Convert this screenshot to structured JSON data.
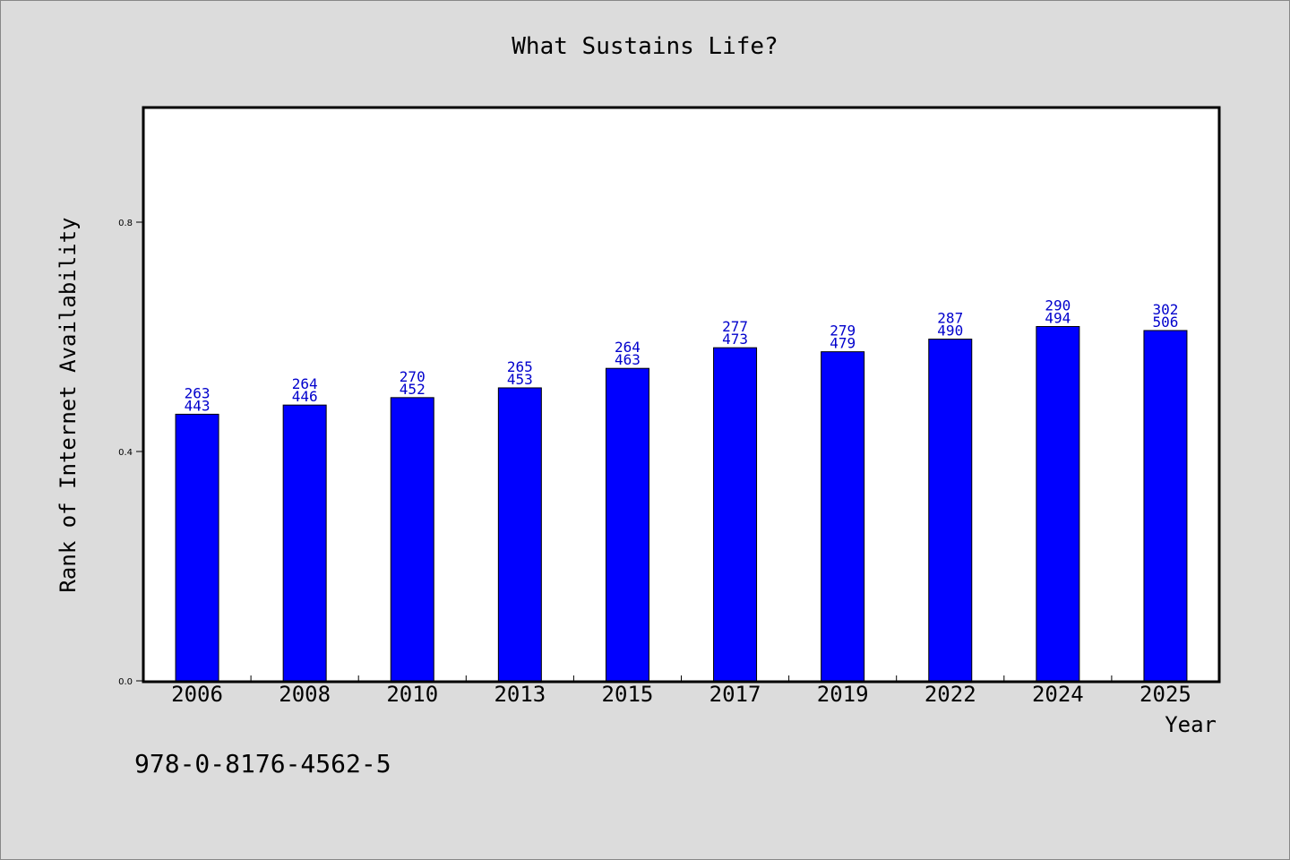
{
  "chart_data": {
    "type": "bar",
    "title": "What Sustains Life?",
    "xlabel": "Year",
    "ylabel": "Rank of Internet Availability",
    "categories": [
      "2006",
      "2008",
      "2010",
      "2013",
      "2015",
      "2017",
      "2019",
      "2022",
      "2024",
      "2025"
    ],
    "values": [
      0.465,
      0.481,
      0.494,
      0.511,
      0.545,
      0.581,
      0.574,
      0.596,
      0.618,
      0.611
    ],
    "labels_top": [
      "263",
      "264",
      "270",
      "265",
      "264",
      "277",
      "279",
      "287",
      "290",
      "302"
    ],
    "labels_bottom": [
      "443",
      "446",
      "452",
      "453",
      "463",
      "473",
      "479",
      "490",
      "494",
      "506"
    ],
    "yticks": [
      0.0,
      0.4,
      0.8
    ],
    "ytick_labels": [
      "0.0",
      "0.4",
      "0.8"
    ],
    "ylim": [
      0,
      1.0
    ],
    "grid": false,
    "bar_color": "#0000ff",
    "label_color": "#0000cc"
  },
  "footer": {
    "isbn": "978-0-8176-4562-5"
  }
}
